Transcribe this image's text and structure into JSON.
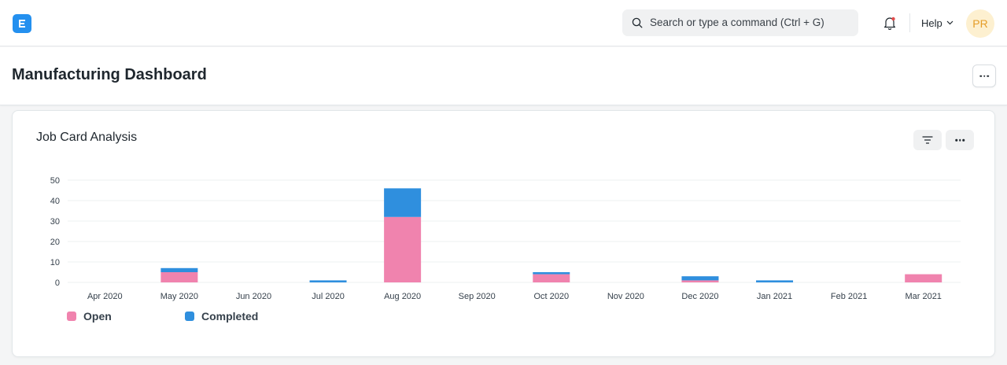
{
  "navbar": {
    "logo_letter": "E",
    "search_placeholder": "Search or type a command (Ctrl + G)",
    "help_label": "Help",
    "avatar_initials": "PR"
  },
  "page": {
    "title": "Manufacturing Dashboard"
  },
  "card": {
    "title": "Job Card Analysis"
  },
  "colors": {
    "open": "#f083ae",
    "completed": "#2f8fde",
    "brand": "#2490ef"
  },
  "icons": {
    "logo": "erpnext-logo-icon",
    "search": "search-icon",
    "notifications": "bell-icon",
    "help_dropdown": "chevron-down-icon",
    "filter": "filter-icon",
    "menu": "ellipsis-icon"
  },
  "chart_data": {
    "type": "bar",
    "stacked": true,
    "categories": [
      "Apr 2020",
      "May 2020",
      "Jun 2020",
      "Jul 2020",
      "Aug 2020",
      "Sep 2020",
      "Oct 2020",
      "Nov 2020",
      "Dec 2020",
      "Jan 2021",
      "Feb 2021",
      "Mar 2021"
    ],
    "series": [
      {
        "name": "Open",
        "values": [
          0,
          5,
          0,
          0,
          32,
          0,
          4,
          0,
          1,
          0,
          0,
          4
        ]
      },
      {
        "name": "Completed",
        "values": [
          0,
          2,
          0,
          1,
          14,
          0,
          1,
          0,
          2,
          1,
          0,
          0
        ]
      }
    ],
    "yticks": [
      0,
      10,
      20,
      30,
      40,
      50
    ],
    "ylim": [
      0,
      50
    ],
    "grid": true,
    "legend_position": "bottom-left",
    "title": "",
    "xlabel": "",
    "ylabel": ""
  }
}
